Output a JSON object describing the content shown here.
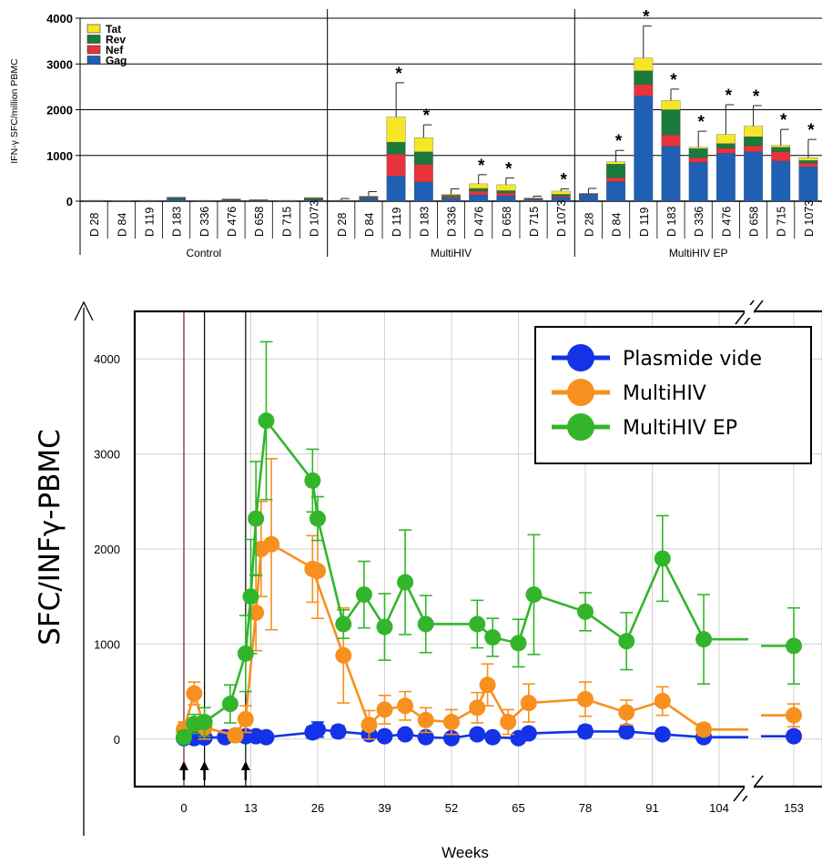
{
  "chart_data": [
    {
      "type": "bar",
      "stacked": true,
      "ylabel": "IFN-γ SFC/million PBMC",
      "ylim": [
        0,
        4000
      ],
      "yticks": [
        0,
        1000,
        2000,
        3000,
        4000
      ],
      "ytick_labels": [
        "0",
        "1000",
        "2000",
        "3000",
        "4000"
      ],
      "grid": true,
      "legend_position": "top-left",
      "significance_mark": "*",
      "groups": [
        {
          "name": "Control",
          "categories": [
            "D 28",
            "D 84",
            "D 119",
            "D 183",
            "D 336",
            "D 476",
            "D 658",
            "D 715",
            "D 1073"
          ],
          "error": [
            0,
            0,
            0,
            0,
            0,
            0,
            0,
            0,
            0
          ],
          "significant": [
            false,
            false,
            false,
            false,
            false,
            false,
            false,
            false,
            false
          ]
        },
        {
          "name": "MultiHIV",
          "categories": [
            "D 28",
            "D 84",
            "D 119",
            "D 183",
            "D 336",
            "D 476",
            "D 658",
            "D 715",
            "D 1073"
          ],
          "error": [
            40,
            100,
            750,
            280,
            120,
            200,
            150,
            40,
            50
          ],
          "significant": [
            false,
            false,
            true,
            true,
            false,
            true,
            true,
            false,
            true
          ]
        },
        {
          "name": "MultiHIV EP",
          "categories": [
            "D 28",
            "D 84",
            "D 119",
            "D 183",
            "D 336",
            "D 476",
            "D 658",
            "D 715",
            "D 1073"
          ],
          "error": [
            110,
            250,
            700,
            250,
            350,
            650,
            450,
            350,
            400
          ],
          "significant": [
            false,
            true,
            true,
            true,
            true,
            true,
            true,
            true,
            true
          ]
        }
      ],
      "series": [
        {
          "name": "Gag",
          "color": "#1f5fb4",
          "values": [
            [
              5,
              5,
              5,
              40,
              5,
              20,
              10,
              5,
              30
            ],
            [
              10,
              60,
              550,
              420,
              70,
              140,
              120,
              30,
              80
            ],
            [
              150,
              430,
              2300,
              1200,
              850,
              1050,
              1080,
              880,
              750
            ]
          ]
        },
        {
          "name": "Nef",
          "color": "#e8333a",
          "values": [
            [
              5,
              2,
              5,
              10,
              5,
              10,
              8,
              5,
              10
            ],
            [
              5,
              20,
              480,
              380,
              30,
              80,
              60,
              15,
              30
            ],
            [
              10,
              80,
              250,
              250,
              100,
              110,
              130,
              200,
              80
            ]
          ]
        },
        {
          "name": "Rev",
          "color": "#1a7a3c",
          "values": [
            [
              5,
              3,
              5,
              30,
              5,
              15,
              10,
              5,
              30
            ],
            [
              5,
              20,
              260,
              280,
              30,
              60,
              50,
              15,
              40
            ],
            [
              5,
              300,
              300,
              550,
              200,
              100,
              200,
              100,
              60
            ]
          ]
        },
        {
          "name": "Tat",
          "color": "#f5e628",
          "values": [
            [
              5,
              0,
              5,
              10,
              5,
              5,
              10,
              5,
              10
            ],
            [
              0,
              10,
              550,
              310,
              20,
              100,
              130,
              10,
              70
            ],
            [
              5,
              50,
              280,
              200,
              30,
              200,
              230,
              40,
              60
            ]
          ]
        }
      ]
    },
    {
      "type": "line",
      "ylabel": "SFC/INFγ-PBMC",
      "xlabel": "Weeks",
      "ylim": [
        -500,
        4500
      ],
      "yticks": [
        0,
        1000,
        2000,
        3000,
        4000
      ],
      "ytick_labels": [
        "0",
        "1000",
        "2000",
        "3000",
        "4000"
      ],
      "xticks": [
        0,
        13,
        26,
        39,
        52,
        65,
        78,
        91,
        104,
        153
      ],
      "xtick_labels": [
        "0",
        "13",
        "26",
        "39",
        "52",
        "65",
        "78",
        "91",
        "104",
        "153"
      ],
      "axis_break": [
        104,
        153
      ],
      "grid": true,
      "legend_position": "top-right",
      "immunization_weeks": [
        0,
        4,
        12
      ],
      "series": [
        {
          "name": "Plasmide vide",
          "color": "#1432e6",
          "points": [
            [
              0,
              10,
              30
            ],
            [
              2,
              10,
              30
            ],
            [
              4,
              15,
              30
            ],
            [
              8,
              20,
              30
            ],
            [
              12,
              30,
              60
            ],
            [
              14,
              30,
              50
            ],
            [
              16,
              20,
              40
            ],
            [
              25,
              70,
              60
            ],
            [
              26,
              100,
              80
            ],
            [
              30,
              80,
              60
            ],
            [
              36,
              50,
              50
            ],
            [
              39,
              30,
              40
            ],
            [
              43,
              50,
              50
            ],
            [
              47,
              20,
              40
            ],
            [
              52,
              10,
              40
            ],
            [
              57,
              50,
              50
            ],
            [
              60,
              20,
              40
            ],
            [
              65,
              10,
              40
            ],
            [
              67,
              60,
              50
            ],
            [
              78,
              80,
              60
            ],
            [
              86,
              80,
              60
            ],
            [
              93,
              50,
              50
            ],
            [
              101,
              20,
              40
            ],
            [
              153,
              30,
              50
            ]
          ]
        },
        {
          "name": " MultiHIV",
          "color": "#f7901e",
          "points": [
            [
              0,
              100,
              80
            ],
            [
              2,
              480,
              120
            ],
            [
              4,
              120,
              120
            ],
            [
              10,
              40,
              60
            ],
            [
              12,
              210,
              140
            ],
            [
              14,
              1330,
              400
            ],
            [
              15,
              2000,
              500
            ],
            [
              17,
              2050,
              900
            ],
            [
              26,
              1770,
              500
            ],
            [
              25,
              1790,
              350
            ],
            [
              31,
              880,
              500
            ],
            [
              36,
              150,
              150
            ],
            [
              39,
              310,
              150
            ],
            [
              43,
              350,
              150
            ],
            [
              47,
              200,
              130
            ],
            [
              52,
              180,
              130
            ],
            [
              57,
              330,
              160
            ],
            [
              59,
              570,
              220
            ],
            [
              63,
              180,
              130
            ],
            [
              67,
              380,
              200
            ],
            [
              78,
              420,
              180
            ],
            [
              86,
              280,
              130
            ],
            [
              93,
              400,
              150
            ],
            [
              101,
              100,
              60
            ],
            [
              153,
              250,
              120
            ]
          ]
        },
        {
          "name": "MultiHIV EP",
          "color": "#33b52b",
          "points": [
            [
              0,
              20,
              60
            ],
            [
              2,
              160,
              100
            ],
            [
              4,
              180,
              150
            ],
            [
              9,
              370,
              200
            ],
            [
              12,
              900,
              400
            ],
            [
              13,
              1500,
              600
            ],
            [
              14,
              2320,
              600
            ],
            [
              16,
              3350,
              830
            ],
            [
              25,
              2720,
              330
            ],
            [
              26,
              2320,
              230
            ],
            [
              31,
              1210,
              150
            ],
            [
              35,
              1520,
              350
            ],
            [
              39,
              1180,
              350
            ],
            [
              43,
              1650,
              550
            ],
            [
              47,
              1210,
              300
            ],
            [
              57,
              1210,
              250
            ],
            [
              60,
              1070,
              200
            ],
            [
              65,
              1010,
              250
            ],
            [
              68,
              1520,
              630
            ],
            [
              78,
              1340,
              200
            ],
            [
              86,
              1030,
              300
            ],
            [
              93,
              1900,
              450
            ],
            [
              101,
              1050,
              470
            ],
            [
              153,
              980,
              400
            ]
          ]
        }
      ]
    }
  ]
}
